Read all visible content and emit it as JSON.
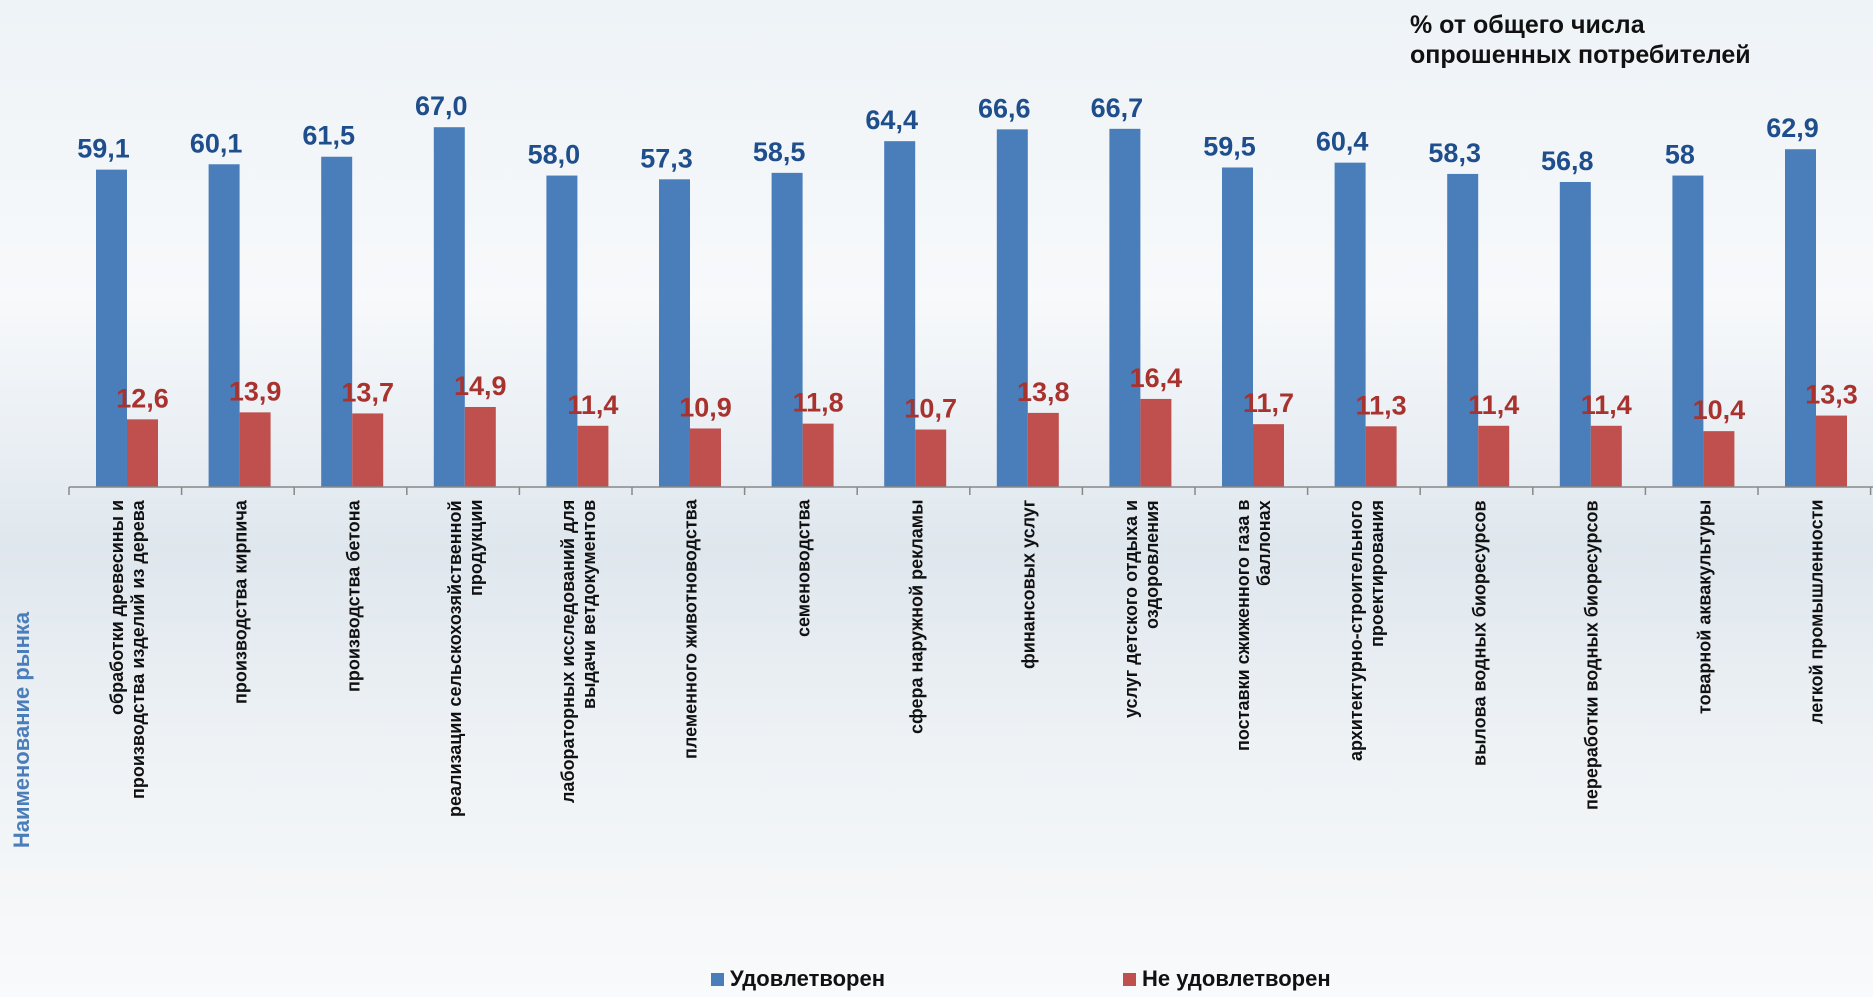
{
  "chart_data": {
    "type": "bar",
    "title": "% от общего числа\nопрошенных потребителей",
    "x_label": "Наименование рынка",
    "categories": [
      "обработки древесины и\nпроизводства изделий из дерева",
      "производства кирпича",
      "производства бетона",
      "реализации сельскохозяйственной\nпродукции",
      "лабораторных исследований для\nвыдачи ветдокументов",
      "племенного животноводства",
      "семеноводства",
      "сфера наружной рекламы",
      "финансовых услуг",
      "услуг детского отдыха и\nоздоровления",
      "поставки сжиженного газа в\nбаллонах",
      "архитектурно-строительного\nпроектирования",
      "вылова водных биоресурсов",
      "переработки водных биоресурсов",
      "товарной аквакультуры",
      "легкой промышленности"
    ],
    "series": [
      {
        "name": "Удовлетворен",
        "color": "#4a7ebb",
        "values": [
          59.1,
          60.1,
          61.5,
          67.0,
          58.0,
          57.3,
          58.5,
          64.4,
          66.6,
          66.7,
          59.5,
          60.4,
          58.3,
          56.8,
          58,
          62.9
        ],
        "value_labels": [
          "59,1",
          "60,1",
          "61,5",
          "67,0",
          "58,0",
          "57,3",
          "58,5",
          "64,4",
          "66,6",
          "66,7",
          "59,5",
          "60,4",
          "58,3",
          "56,8",
          "58",
          "62,9"
        ]
      },
      {
        "name": "Не удовлетворен",
        "color": "#c0504d",
        "values": [
          12.6,
          13.9,
          13.7,
          14.9,
          11.4,
          10.9,
          11.8,
          10.7,
          13.8,
          16.4,
          11.7,
          11.3,
          11.4,
          11.4,
          10.4,
          13.3
        ],
        "value_labels": [
          "12,6",
          "13,9",
          "13,7",
          "14,9",
          "11,4",
          "10,9",
          "11,8",
          "10,7",
          "13,8",
          "16,4",
          "11,7",
          "11,3",
          "11,4",
          "11,4",
          "10,4",
          "13,3"
        ]
      }
    ]
  }
}
